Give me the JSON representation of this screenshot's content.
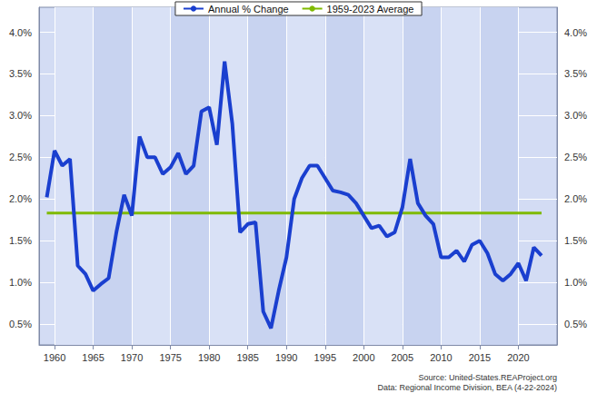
{
  "chart_data": {
    "type": "line",
    "x": [
      1959,
      1960,
      1961,
      1962,
      1963,
      1964,
      1965,
      1966,
      1967,
      1968,
      1969,
      1970,
      1971,
      1972,
      1973,
      1974,
      1975,
      1976,
      1977,
      1978,
      1979,
      1980,
      1981,
      1982,
      1983,
      1984,
      1985,
      1986,
      1987,
      1988,
      1989,
      1990,
      1991,
      1992,
      1993,
      1994,
      1995,
      1996,
      1997,
      1998,
      1999,
      2000,
      2001,
      2002,
      2003,
      2004,
      2005,
      2006,
      2007,
      2008,
      2009,
      2010,
      2011,
      2012,
      2013,
      2014,
      2015,
      2016,
      2017,
      2018,
      2019,
      2020,
      2021,
      2022,
      2023
    ],
    "series": [
      {
        "name": "Annual % Change",
        "color": "#1a3fcf",
        "values": [
          2.02,
          2.58,
          2.4,
          2.48,
          1.2,
          1.1,
          0.9,
          0.98,
          1.05,
          1.6,
          2.05,
          1.8,
          2.75,
          2.5,
          2.5,
          2.3,
          2.38,
          2.55,
          2.3,
          2.4,
          3.05,
          3.1,
          2.65,
          3.65,
          2.9,
          1.6,
          1.7,
          1.72,
          0.65,
          0.45,
          0.9,
          1.3,
          2.0,
          2.25,
          2.4,
          2.4,
          2.25,
          2.1,
          2.08,
          2.05,
          1.95,
          1.8,
          1.65,
          1.68,
          1.55,
          1.6,
          1.9,
          2.48,
          1.95,
          1.8,
          1.7,
          1.3,
          1.3,
          1.38,
          1.25,
          1.45,
          1.5,
          1.35,
          1.1,
          1.02,
          1.1,
          1.23,
          1.02,
          1.42,
          1.32
        ]
      },
      {
        "name": "1959-2023 Average",
        "color": "#7fba00",
        "values": [
          1.83,
          1.83,
          1.83,
          1.83,
          1.83,
          1.83,
          1.83,
          1.83,
          1.83,
          1.83,
          1.83,
          1.83,
          1.83,
          1.83,
          1.83,
          1.83,
          1.83,
          1.83,
          1.83,
          1.83,
          1.83,
          1.83,
          1.83,
          1.83,
          1.83,
          1.83,
          1.83,
          1.83,
          1.83,
          1.83,
          1.83,
          1.83,
          1.83,
          1.83,
          1.83,
          1.83,
          1.83,
          1.83,
          1.83,
          1.83,
          1.83,
          1.83,
          1.83,
          1.83,
          1.83,
          1.83,
          1.83,
          1.83,
          1.83,
          1.83,
          1.83,
          1.83,
          1.83,
          1.83,
          1.83,
          1.83,
          1.83,
          1.83,
          1.83,
          1.83,
          1.83,
          1.83,
          1.83,
          1.83,
          1.83
        ]
      }
    ],
    "xlim": [
      1958,
      2025
    ],
    "xticks": [
      1960,
      1965,
      1970,
      1975,
      1980,
      1985,
      1990,
      1995,
      2000,
      2005,
      2010,
      2015,
      2020
    ],
    "ylim": [
      0.25,
      4.3
    ],
    "yticks": [
      {
        "value": 0.5,
        "label": "0.5%"
      },
      {
        "value": 1.0,
        "label": "1.0%"
      },
      {
        "value": 1.5,
        "label": "1.5%"
      },
      {
        "value": 2.0,
        "label": "2.0%"
      },
      {
        "value": 2.5,
        "label": "2.5%"
      },
      {
        "value": 3.0,
        "label": "3.0%"
      },
      {
        "value": 3.5,
        "label": "3.5%"
      },
      {
        "value": 4.0,
        "label": "4.0%"
      }
    ],
    "y2lim": [
      0.25,
      4.3
    ],
    "y2ticks": [
      {
        "value": 0.5,
        "label": "0.5%"
      },
      {
        "value": 1.0,
        "label": "1.0%"
      },
      {
        "value": 1.5,
        "label": "1.5%"
      },
      {
        "value": 2.0,
        "label": "2.0%"
      },
      {
        "value": 2.5,
        "label": "2.5%"
      },
      {
        "value": 3.0,
        "label": "3.0%"
      },
      {
        "value": 3.5,
        "label": "3.5%"
      },
      {
        "value": 4.0,
        "label": "4.0%"
      }
    ],
    "grid": true,
    "legend": "top",
    "annotations": [
      "Source: United-States.REAProject.org",
      "Data: Regional Income Division, BEA (4-22-2024)"
    ]
  }
}
